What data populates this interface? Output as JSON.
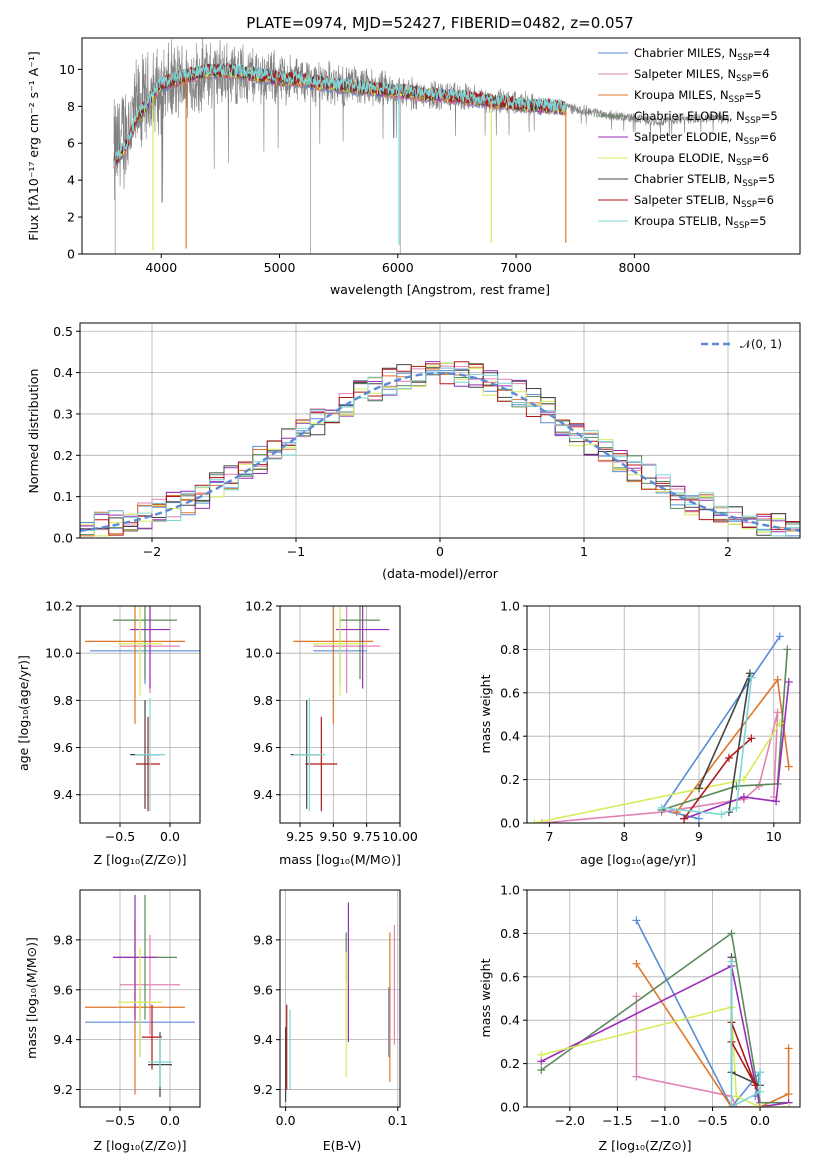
{
  "colors": {
    "Chabrier MILES": "#5b8bd6",
    "Salpeter MILES": "#e184b4",
    "Kroupa MILES": "#e0762b",
    "Chabrier ELODIE": "#5b8a5c",
    "Salpeter ELODIE": "#9b2dbb",
    "Kroupa ELODIE": "#d7ec5a",
    "Chabrier STELIB": "#444444",
    "Salpeter STELIB": "#b01818",
    "Kroupa STELIB": "#7dd6d6",
    "data": "#808080",
    "gaussian": "#5b8bd6"
  },
  "chart_data": [
    {
      "id": "spectrum",
      "type": "line",
      "title": "PLATE=0974, MJD=52427, FIBERID=0482, z=0.057",
      "xlabel": "wavelength [Angstrom, rest frame]",
      "ylabel": "Flux [fλ10⁻¹⁷ erg cm⁻² s⁻¹ A⁻¹]",
      "xlim": [
        3330,
        9400
      ],
      "ylim": [
        0,
        11.7
      ],
      "xticks": [
        4000,
        5000,
        6000,
        7000,
        8000
      ],
      "yticks": [
        0,
        2,
        4,
        6,
        8,
        10
      ],
      "legend_position": "top-right",
      "legend": [
        {
          "model": "Chabrier MILES",
          "label": "Chabrier MILES, N",
          "sub": "SSP",
          "tail": "=4"
        },
        {
          "model": "Salpeter MILES",
          "label": "Salpeter MILES, N",
          "sub": "SSP",
          "tail": "=6"
        },
        {
          "model": "Kroupa MILES",
          "label": "Kroupa MILES, N",
          "sub": "SSP",
          "tail": "=5"
        },
        {
          "model": "Chabrier ELODIE",
          "label": "Chabrier ELODIE, N",
          "sub": "SSP",
          "tail": "=5"
        },
        {
          "model": "Salpeter ELODIE",
          "label": "Salpeter ELODIE, N",
          "sub": "SSP",
          "tail": "=6"
        },
        {
          "model": "Kroupa ELODIE",
          "label": "Kroupa ELODIE, N",
          "sub": "SSP",
          "tail": "=6"
        },
        {
          "model": "Chabrier STELIB",
          "label": "Chabrier STELIB, N",
          "sub": "SSP",
          "tail": "=5"
        },
        {
          "model": "Salpeter STELIB",
          "label": "Salpeter STELIB, N",
          "sub": "SSP",
          "tail": "=6"
        },
        {
          "model": "Kroupa STELIB",
          "label": "Kroupa STELIB, N",
          "sub": "SSP",
          "tail": "=5"
        }
      ],
      "data_series": {
        "name": "data",
        "wavelength_range": [
          3600,
          8800
        ],
        "continuum": [
          [
            3600,
            5.2
          ],
          [
            3700,
            6.6
          ],
          [
            3800,
            7.8
          ],
          [
            3900,
            8.4
          ],
          [
            4000,
            9.0
          ],
          [
            4200,
            9.4
          ],
          [
            4400,
            9.7
          ],
          [
            4600,
            9.8
          ],
          [
            4800,
            9.7
          ],
          [
            5000,
            9.5
          ],
          [
            5200,
            9.4
          ],
          [
            5500,
            9.2
          ],
          [
            6000,
            8.8
          ],
          [
            6500,
            8.5
          ],
          [
            7000,
            8.2
          ],
          [
            7400,
            8.0
          ],
          [
            7800,
            7.5
          ],
          [
            8200,
            7.2
          ],
          [
            8600,
            7.4
          ],
          [
            8800,
            7.3
          ]
        ],
        "noise_amplitude": [
          [
            3600,
            3.5
          ],
          [
            4000,
            2.5
          ],
          [
            5000,
            1.5
          ],
          [
            6000,
            1.0
          ],
          [
            7000,
            0.7
          ],
          [
            7500,
            0.3
          ],
          [
            8800,
            0.3
          ]
        ]
      },
      "model_series": {
        "wavelength_range": [
          3600,
          7420
        ],
        "continuum": [
          [
            3600,
            5.0
          ],
          [
            3700,
            5.8
          ],
          [
            3800,
            7.4
          ],
          [
            3900,
            8.3
          ],
          [
            4000,
            9.2
          ],
          [
            4200,
            9.6
          ],
          [
            4400,
            9.9
          ],
          [
            4600,
            9.9
          ],
          [
            4800,
            9.7
          ],
          [
            5000,
            9.5
          ],
          [
            5200,
            9.4
          ],
          [
            5500,
            9.1
          ],
          [
            6000,
            8.8
          ],
          [
            6500,
            8.5
          ],
          [
            7000,
            8.1
          ],
          [
            7420,
            7.9
          ]
        ],
        "dips": [
          [
            3930,
            0.2
          ],
          [
            4210,
            0.3
          ],
          [
            6010,
            0.5
          ],
          [
            6790,
            0.6
          ],
          [
            7420,
            0.6
          ]
        ]
      }
    },
    {
      "id": "residuals",
      "type": "histogram",
      "xlabel": "(data-model)/error",
      "ylabel": "Normed distribution",
      "xlim": [
        -2.5,
        2.5
      ],
      "ylim": [
        0,
        0.52
      ],
      "xticks": [
        -2,
        -1,
        0,
        1,
        2
      ],
      "yticks": [
        0.0,
        0.1,
        0.2,
        0.3,
        0.4,
        0.5
      ],
      "legend_position": "top-right",
      "gaussian_label": "𝒩(0, 1)",
      "bin_width": 0.1
    },
    {
      "id": "age-vs-z",
      "type": "scatter",
      "xlabel": "Z [log₁₀(Z/Z⊙)]",
      "ylabel": "age  [log₁₀(age/yr)]",
      "xlim": [
        -0.9,
        0.3
      ],
      "ylim": [
        9.28,
        10.2
      ],
      "xticks": [
        -0.5,
        0.0
      ],
      "yticks": [
        9.4,
        9.6,
        9.8,
        10.0,
        10.2
      ],
      "points": [
        {
          "model": "Chabrier MILES",
          "x": -0.25,
          "y": 10.01,
          "xerr": 0.55,
          "yerr": 0.14
        },
        {
          "model": "Salpeter MILES",
          "x": -0.2,
          "y": 10.03,
          "xerr": 0.3,
          "yerr": 0.2
        },
        {
          "model": "Kroupa MILES",
          "x": -0.35,
          "y": 10.05,
          "xerr": 0.5,
          "yerr": 0.35
        },
        {
          "model": "Chabrier ELODIE",
          "x": -0.25,
          "y": 10.14,
          "xerr": 0.32,
          "yerr": 0.25
        },
        {
          "model": "Salpeter ELODIE",
          "x": -0.2,
          "y": 10.1,
          "xerr": 0.2,
          "yerr": 0.25
        },
        {
          "model": "Kroupa ELODIE",
          "x": -0.3,
          "y": 10.04,
          "xerr": 0.22,
          "yerr": 0.22
        },
        {
          "model": "Chabrier STELIB",
          "x": -0.25,
          "y": 9.57,
          "xerr": 0.15,
          "yerr": 0.23
        },
        {
          "model": "Salpeter STELIB",
          "x": -0.22,
          "y": 9.53,
          "xerr": 0.12,
          "yerr": 0.2
        },
        {
          "model": "Kroupa STELIB",
          "x": -0.2,
          "y": 9.57,
          "xerr": 0.15,
          "yerr": 0.24
        }
      ]
    },
    {
      "id": "age-vs-mass",
      "type": "scatter",
      "xlabel": "mass [log₁₀(M/M⊙)]",
      "ylabel": "",
      "xlim": [
        9.1,
        10.0
      ],
      "ylim": [
        9.28,
        10.2
      ],
      "xticks": [
        9.25,
        9.5,
        9.75,
        10.0
      ],
      "yticks": [
        9.4,
        9.6,
        9.8,
        10.0,
        10.2
      ],
      "points": [
        {
          "model": "Chabrier MILES",
          "x": 9.55,
          "y": 10.01,
          "xerr": 0.2,
          "yerr": 0.14
        },
        {
          "model": "Salpeter MILES",
          "x": 9.6,
          "y": 10.03,
          "xerr": 0.25,
          "yerr": 0.2
        },
        {
          "model": "Kroupa MILES",
          "x": 9.5,
          "y": 10.05,
          "xerr": 0.3,
          "yerr": 0.35
        },
        {
          "model": "Chabrier ELODIE",
          "x": 9.7,
          "y": 10.14,
          "xerr": 0.15,
          "yerr": 0.25
        },
        {
          "model": "Salpeter ELODIE",
          "x": 9.72,
          "y": 10.1,
          "xerr": 0.2,
          "yerr": 0.25
        },
        {
          "model": "Kroupa ELODIE",
          "x": 9.55,
          "y": 10.04,
          "xerr": 0.2,
          "yerr": 0.22
        },
        {
          "model": "Chabrier STELIB",
          "x": 9.3,
          "y": 9.57,
          "xerr": 0.12,
          "yerr": 0.23
        },
        {
          "model": "Salpeter STELIB",
          "x": 9.41,
          "y": 9.53,
          "xerr": 0.12,
          "yerr": 0.2
        },
        {
          "model": "Kroupa STELIB",
          "x": 9.32,
          "y": 9.57,
          "xerr": 0.12,
          "yerr": 0.24
        }
      ]
    },
    {
      "id": "weight-vs-age",
      "type": "line",
      "xlabel": "age  [log₁₀(age/yr)]",
      "ylabel": "mass weight",
      "xlim": [
        6.7,
        10.35
      ],
      "ylim": [
        0,
        1.0
      ],
      "xticks": [
        7,
        8,
        9,
        10
      ],
      "yticks": [
        0.0,
        0.2,
        0.4,
        0.6,
        0.8,
        1.0
      ],
      "series": [
        {
          "model": "Chabrier MILES",
          "x": [
            9.0,
            8.5,
            10.08
          ],
          "y": [
            0.02,
            0.06,
            0.86
          ]
        },
        {
          "model": "Salpeter MILES",
          "x": [
            6.9,
            8.5,
            9.6,
            9.8,
            10.05,
            10.0
          ],
          "y": [
            0.0,
            0.05,
            0.11,
            0.17,
            0.51,
            0.12
          ]
        },
        {
          "model": "Kroupa MILES",
          "x": [
            8.7,
            10.05,
            10.2
          ],
          "y": [
            0.05,
            0.66,
            0.26
          ]
        },
        {
          "model": "Chabrier ELODIE",
          "x": [
            8.5,
            9.5,
            10.05,
            10.18
          ],
          "y": [
            0.06,
            0.17,
            0.18,
            0.8
          ]
        },
        {
          "model": "Salpeter ELODIE",
          "x": [
            8.8,
            9.6,
            10.03,
            10.2
          ],
          "y": [
            0.02,
            0.12,
            0.1,
            0.65
          ]
        },
        {
          "model": "Kroupa ELODIE",
          "x": [
            6.8,
            9.6,
            10.08
          ],
          "y": [
            0.0,
            0.2,
            0.46
          ]
        },
        {
          "model": "Chabrier STELIB",
          "x": [
            9.4,
            9.68,
            9.0
          ],
          "y": [
            0.05,
            0.69,
            0.16
          ]
        },
        {
          "model": "Salpeter STELIB",
          "x": [
            8.8,
            9.4,
            9.7
          ],
          "y": [
            0.02,
            0.3,
            0.39
          ]
        },
        {
          "model": "Kroupa STELIB",
          "x": [
            8.5,
            9.3,
            9.5,
            9.7
          ],
          "y": [
            0.07,
            0.04,
            0.07,
            0.67
          ]
        }
      ]
    },
    {
      "id": "mass-vs-z",
      "type": "scatter",
      "xlabel": "Z [log₁₀(Z/Z⊙)]",
      "ylabel": "mass [log₁₀(M/M⊙)]",
      "xlim": [
        -0.9,
        0.3
      ],
      "ylim": [
        9.13,
        10.0
      ],
      "xticks": [
        -0.5,
        0.0
      ],
      "yticks": [
        9.2,
        9.4,
        9.6,
        9.8
      ],
      "points": [
        {
          "model": "Chabrier MILES",
          "x": -0.3,
          "y": 9.47,
          "xerr": 0.55,
          "yerr": 0.14
        },
        {
          "model": "Salpeter MILES",
          "x": -0.2,
          "y": 9.62,
          "xerr": 0.3,
          "yerr": 0.2
        },
        {
          "model": "Kroupa MILES",
          "x": -0.35,
          "y": 9.53,
          "xerr": 0.5,
          "yerr": 0.35
        },
        {
          "model": "Chabrier ELODIE",
          "x": -0.25,
          "y": 9.73,
          "xerr": 0.32,
          "yerr": 0.25
        },
        {
          "model": "Salpeter ELODIE",
          "x": -0.35,
          "y": 9.73,
          "xerr": 0.22,
          "yerr": 0.25
        },
        {
          "model": "Kroupa ELODIE",
          "x": -0.3,
          "y": 9.55,
          "xerr": 0.22,
          "yerr": 0.22
        },
        {
          "model": "Chabrier STELIB",
          "x": -0.1,
          "y": 9.3,
          "xerr": 0.12,
          "yerr": 0.13
        },
        {
          "model": "Salpeter STELIB",
          "x": -0.18,
          "y": 9.41,
          "xerr": 0.1,
          "yerr": 0.13
        },
        {
          "model": "Kroupa STELIB",
          "x": -0.1,
          "y": 9.31,
          "xerr": 0.12,
          "yerr": 0.1
        }
      ]
    },
    {
      "id": "mass-vs-ebv",
      "type": "scatter",
      "xlabel": "E(B-V)",
      "ylabel": "",
      "xlim": [
        -0.005,
        0.102
      ],
      "ylim": [
        9.13,
        10.0
      ],
      "xticks": [
        0.0,
        0.1
      ],
      "yticks": [
        9.2,
        9.4,
        9.6,
        9.8
      ],
      "points": [
        {
          "model": "Chabrier MILES",
          "x": 0.092,
          "y": 9.47,
          "xerr": 0,
          "yerr": 0.14
        },
        {
          "model": "Salpeter MILES",
          "x": 0.097,
          "y": 9.62,
          "xerr": 0,
          "yerr": 0.24
        },
        {
          "model": "Kroupa MILES",
          "x": 0.093,
          "y": 9.53,
          "xerr": 0,
          "yerr": 0.3
        },
        {
          "model": "Chabrier ELODIE",
          "x": 0.054,
          "y": 9.73,
          "xerr": 0,
          "yerr": 0.1
        },
        {
          "model": "Salpeter ELODIE",
          "x": 0.056,
          "y": 9.67,
          "xerr": 0,
          "yerr": 0.28
        },
        {
          "model": "Kroupa ELODIE",
          "x": 0.054,
          "y": 9.5,
          "xerr": 0,
          "yerr": 0.25
        },
        {
          "model": "Chabrier STELIB",
          "x": 0.0,
          "y": 9.3,
          "xerr": 0,
          "yerr": 0.15
        },
        {
          "model": "Salpeter STELIB",
          "x": 0.001,
          "y": 9.37,
          "xerr": 0,
          "yerr": 0.17
        },
        {
          "model": "Kroupa STELIB",
          "x": 0.004,
          "y": 9.36,
          "xerr": 0,
          "yerr": 0.16
        }
      ]
    },
    {
      "id": "weight-vs-z",
      "type": "line",
      "xlabel": "Z [log₁₀(Z/Z⊙)]",
      "ylabel": "mass weight",
      "xlim": [
        -2.45,
        0.42
      ],
      "ylim": [
        0,
        1.0
      ],
      "xticks": [
        -2.0,
        -1.5,
        -1.0,
        -0.5,
        0.0
      ],
      "yticks": [
        0.0,
        0.2,
        0.4,
        0.6,
        0.8,
        1.0
      ],
      "series": [
        {
          "model": "Chabrier MILES",
          "x": [
            -1.3,
            -0.3,
            0.0,
            -0.05
          ],
          "y": [
            0.86,
            0.0,
            0.16,
            0.05
          ]
        },
        {
          "model": "Salpeter MILES",
          "x": [
            -1.3,
            -1.3,
            -0.3,
            -0.25
          ],
          "y": [
            0.51,
            0.14,
            0.05,
            0.0
          ]
        },
        {
          "model": "Kroupa MILES",
          "x": [
            -1.3,
            -0.3,
            0.0,
            0.3,
            0.3
          ],
          "y": [
            0.66,
            0.0,
            0.0,
            0.06,
            0.27
          ]
        },
        {
          "model": "Chabrier ELODIE",
          "x": [
            -2.3,
            -0.3,
            0.0,
            0.3
          ],
          "y": [
            0.17,
            0.8,
            0.02,
            0.02
          ]
        },
        {
          "model": "Salpeter ELODIE",
          "x": [
            -2.3,
            -0.3,
            0.0,
            0.3
          ],
          "y": [
            0.21,
            0.65,
            0.0,
            0.02
          ]
        },
        {
          "model": "Kroupa ELODIE",
          "x": [
            -2.3,
            -0.3,
            -0.25,
            0.0,
            0.3
          ],
          "y": [
            0.24,
            0.46,
            0.05,
            0.0,
            0.0
          ]
        },
        {
          "model": "Chabrier STELIB",
          "x": [
            -0.3,
            -0.3,
            0.0
          ],
          "y": [
            0.69,
            0.16,
            0.1
          ]
        },
        {
          "model": "Salpeter STELIB",
          "x": [
            -0.3,
            -0.05,
            -0.3
          ],
          "y": [
            0.39,
            0.1,
            0.3
          ]
        },
        {
          "model": "Kroupa STELIB",
          "x": [
            -0.3,
            -0.3,
            0.0,
            0.0
          ],
          "y": [
            0.67,
            0.0,
            0.07,
            0.16
          ]
        }
      ]
    }
  ]
}
